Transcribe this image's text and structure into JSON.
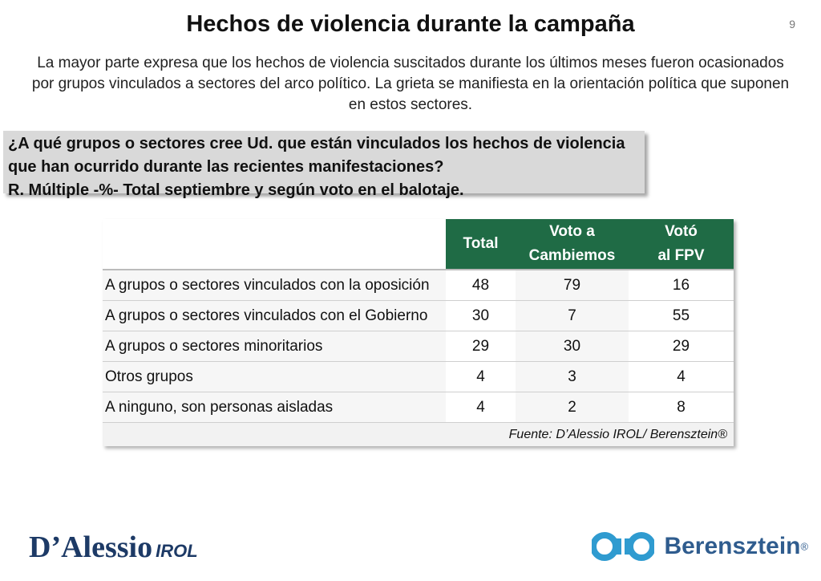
{
  "header": {
    "title": "Hechos de violencia durante la campaña",
    "page_number": "9"
  },
  "subtitle": {
    "line1": "La mayor parte expresa que los hechos de violencia suscitados durante los últimos meses fueron ocasionados",
    "line2": "por grupos vinculados a sectores del arco político. La grieta se manifiesta en la orientación política que suponen",
    "line3": "en estos sectores."
  },
  "question": {
    "line1": "¿A qué grupos o sectores cree Ud. que están vinculados los hechos de violencia",
    "line2": "que han ocurrido durante las recientes manifestaciones?",
    "line3": "R. Múltiple -%- Total septiembre y según voto en el balotaje."
  },
  "table": {
    "header_color": "#1f6b45",
    "columns": [
      {
        "line1": "Total",
        "line2": ""
      },
      {
        "line1": "Voto a",
        "line2": "Cambiemos"
      },
      {
        "line1": "Votó",
        "line2": "al FPV"
      }
    ],
    "rows": [
      {
        "label": "A grupos o sectores vinculados con la oposición",
        "total": "48",
        "cambiemos": "79",
        "fpv": "16"
      },
      {
        "label": "A grupos o sectores vinculados con el Gobierno",
        "total": "30",
        "cambiemos": "7",
        "fpv": "55"
      },
      {
        "label": "A grupos o sectores minoritarios",
        "total": "29",
        "cambiemos": "30",
        "fpv": "29"
      },
      {
        "label": "Otros grupos",
        "total": "4",
        "cambiemos": "3",
        "fpv": "4"
      },
      {
        "label": "A ninguno, son personas aisladas",
        "total": "4",
        "cambiemos": "2",
        "fpv": "8"
      }
    ],
    "source": "Fuente: D’Alessio IROL/ Berensztein®"
  },
  "footer": {
    "left_logo": {
      "main": "D’Alessio",
      "suffix": "IROL"
    },
    "right_logo": {
      "text": "Berensztein",
      "reg": "®",
      "icon_color": "#2f9bd0",
      "text_color": "#2f5c8e"
    }
  }
}
